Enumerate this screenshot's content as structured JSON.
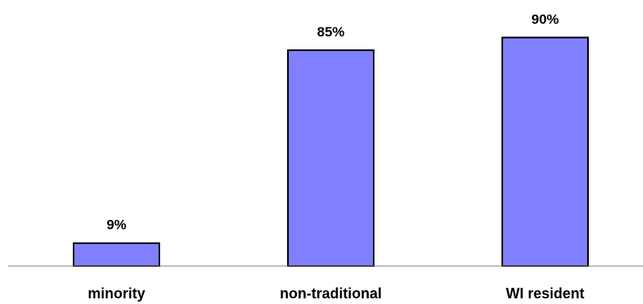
{
  "chart_data": {
    "type": "bar",
    "categories": [
      "minority",
      "non-traditional",
      "WI resident"
    ],
    "values": [
      9,
      85,
      90
    ],
    "value_labels": [
      "9%",
      "85%",
      "90%"
    ],
    "title": "",
    "xlabel": "",
    "ylabel": "",
    "ylim": [
      0,
      100
    ],
    "grid": false,
    "legend": "none",
    "colors": {
      "bar_fill": "#8080ff",
      "bar_stroke": "#000000",
      "axis": "#7f7f7f",
      "text": "#000000"
    }
  }
}
